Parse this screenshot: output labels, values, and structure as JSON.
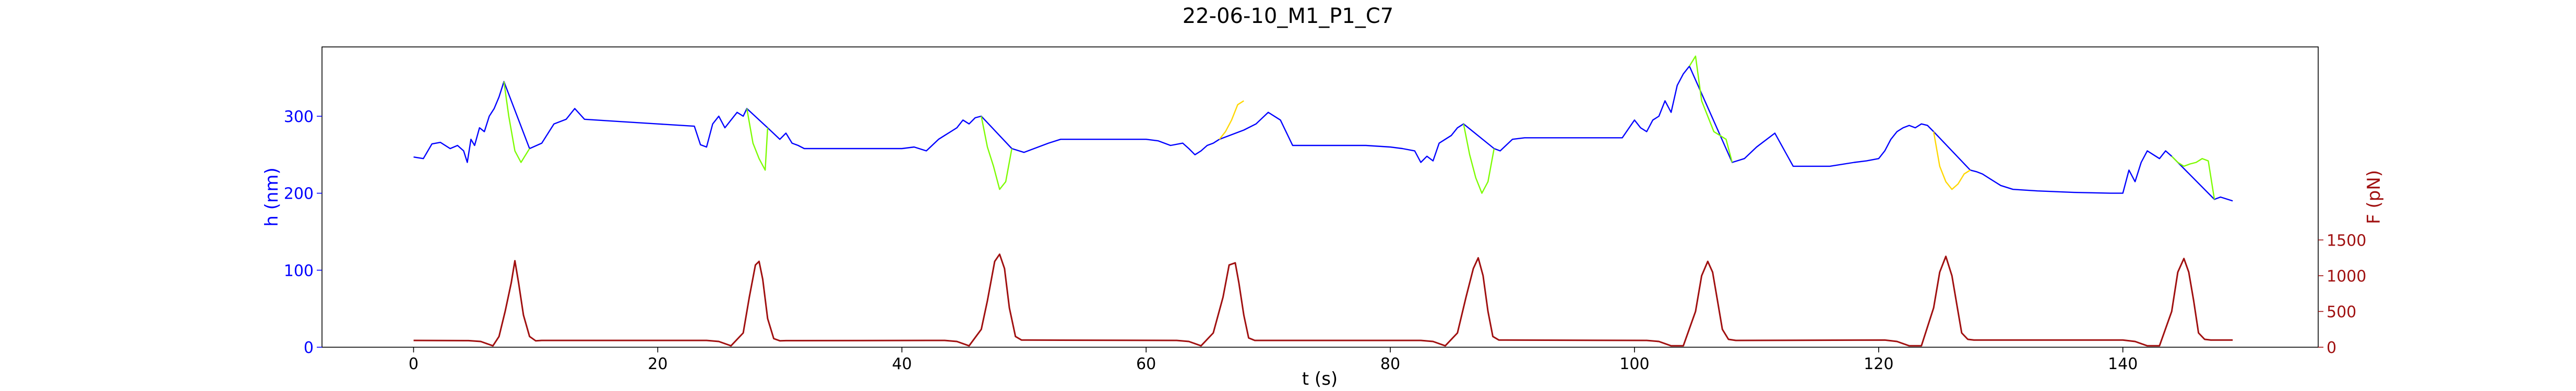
{
  "chart_data": {
    "type": "line",
    "title": "22-06-10_M1_P1_C7",
    "xlabel": "t (s)",
    "ylabel_left": "h (nm)",
    "ylabel_right": "F (pN)",
    "xlim": [
      -7.5,
      156
    ],
    "ylim_left": [
      0,
      390
    ],
    "ylim_right": [
      0,
      4200
    ],
    "xticks": [
      0,
      20,
      40,
      60,
      80,
      100,
      120,
      140
    ],
    "yticks_left": [
      0,
      100,
      200,
      300
    ],
    "yticks_right": [
      0,
      500,
      1000,
      1500
    ],
    "grid": false,
    "legend": "none",
    "colors": {
      "height": "#0000ff",
      "force": "#a01010",
      "lime": "#7cfc00",
      "gold": "#ffd700",
      "left_axis": "#0000ff",
      "right_axis": "#a01010"
    },
    "series": [
      {
        "axis": "left",
        "color": "#0000ff",
        "x": [
          0,
          0.8,
          1.5,
          2.2,
          3.0,
          3.6,
          4.1,
          4.4,
          4.7,
          5.0,
          5.4,
          5.8,
          6.2,
          6.6,
          7.0,
          7.4,
          9.5,
          10.5,
          11.5,
          12.5,
          13.2,
          14.0,
          15.0,
          17.0,
          20.0,
          23.0,
          23.5,
          24.0,
          24.5,
          25.0,
          25.5,
          26.0,
          26.5,
          27.0,
          27.3,
          29.0,
          30.0,
          30.5,
          31.0,
          31.5,
          32.0,
          32.5,
          33.0,
          34.0,
          35.0,
          37.0,
          40.0,
          41.0,
          42.0,
          43.0,
          43.5,
          44.0,
          44.5,
          45.0,
          45.5,
          46.0,
          46.5,
          49.0,
          50.0,
          52.0,
          53.0,
          57.0,
          60.0,
          61.0,
          62.0,
          63.0,
          63.5,
          64.0,
          64.5,
          65.0,
          65.5,
          66.0,
          68.0,
          69.0,
          70.0,
          71.0,
          72.0,
          74.0,
          78.0,
          80.0,
          81.0,
          82.0,
          82.5,
          83.0,
          83.5,
          84.0,
          84.5,
          85.0,
          85.5,
          86.0,
          88.5,
          89.0,
          90.0,
          91.0,
          93.0,
          95.0,
          97.0,
          99.0,
          100.0,
          100.5,
          101.0,
          101.5,
          102.0,
          102.5,
          103.0,
          103.5,
          104.0,
          104.5,
          108.0,
          109.0,
          110.0,
          111.5,
          113.0,
          116.0,
          118.0,
          119.0,
          120.0,
          120.5,
          121.0,
          121.5,
          122.0,
          122.5,
          123.0,
          123.5,
          124.0,
          124.5,
          127.5,
          128.0,
          128.5,
          129.0,
          129.5,
          130.0,
          131.0,
          133.0,
          136.0,
          139.0,
          140.0,
          140.5,
          141.0,
          141.5,
          142.0,
          142.5,
          143.0,
          143.5,
          144.0,
          147.5,
          148.0,
          149.0
        ],
        "y": [
          247,
          245,
          264,
          266,
          258,
          262,
          255,
          240,
          270,
          262,
          285,
          280,
          300,
          310,
          325,
          345,
          258,
          265,
          290,
          296,
          310,
          296,
          295,
          293,
          290,
          287,
          263,
          260,
          290,
          300,
          285,
          295,
          305,
          300,
          310,
          285,
          270,
          278,
          265,
          262,
          258,
          258,
          258,
          258,
          258,
          258,
          258,
          260,
          255,
          270,
          275,
          280,
          285,
          295,
          290,
          298,
          300,
          258,
          253,
          265,
          270,
          270,
          270,
          268,
          262,
          265,
          258,
          250,
          255,
          262,
          265,
          270,
          282,
          290,
          305,
          295,
          262,
          262,
          262,
          260,
          258,
          255,
          240,
          248,
          242,
          265,
          270,
          275,
          285,
          290,
          258,
          255,
          270,
          272,
          272,
          272,
          272,
          272,
          295,
          285,
          280,
          295,
          300,
          320,
          305,
          340,
          355,
          365,
          240,
          245,
          260,
          278,
          235,
          235,
          240,
          242,
          245,
          255,
          270,
          280,
          285,
          288,
          285,
          290,
          288,
          280,
          230,
          228,
          225,
          220,
          215,
          210,
          205,
          203,
          201,
          200,
          200,
          230,
          215,
          240,
          255,
          250,
          245,
          255,
          248,
          192,
          195,
          190
        ]
      },
      {
        "axis": "left",
        "color": "#7cfc00",
        "x": [
          7.4,
          7.8,
          8.3,
          8.8,
          9.5
        ],
        "y": [
          345,
          300,
          255,
          240,
          258
        ]
      },
      {
        "axis": "left",
        "color": "#7cfc00",
        "x": [
          27.3,
          27.8,
          28.3,
          28.8,
          29.0
        ],
        "y": [
          310,
          265,
          245,
          230,
          285
        ]
      },
      {
        "axis": "left",
        "color": "#7cfc00",
        "x": [
          46.5,
          47.0,
          47.5,
          48.0,
          48.5,
          49.0
        ],
        "y": [
          300,
          260,
          235,
          205,
          215,
          258
        ]
      },
      {
        "axis": "left",
        "color": "#ffd700",
        "x": [
          66.0,
          66.5,
          67.0,
          67.5,
          68.0
        ],
        "y": [
          270,
          280,
          295,
          315,
          320
        ]
      },
      {
        "axis": "left",
        "color": "#7cfc00",
        "x": [
          86.0,
          86.5,
          87.0,
          87.5,
          88.0,
          88.5
        ],
        "y": [
          290,
          250,
          220,
          200,
          215,
          258
        ]
      },
      {
        "axis": "left",
        "color": "#7cfc00",
        "x": [
          104.5,
          105.0,
          105.5,
          106.0,
          106.5,
          107.0,
          107.5,
          108.0
        ],
        "y": [
          365,
          378,
          320,
          300,
          280,
          275,
          270,
          240
        ]
      },
      {
        "axis": "left",
        "color": "#ffd700",
        "x": [
          124.5,
          125.0,
          125.5,
          126.0,
          126.5,
          127.0,
          127.5
        ],
        "y": [
          280,
          235,
          215,
          205,
          212,
          225,
          230
        ]
      },
      {
        "axis": "left",
        "color": "#7cfc00",
        "x": [
          144.0,
          144.5,
          145.0,
          145.5,
          146.0,
          146.5,
          147.0,
          147.5
        ],
        "y": [
          248,
          240,
          235,
          238,
          240,
          245,
          242,
          192
        ]
      },
      {
        "axis": "right",
        "color": "#a01010",
        "x": [
          0,
          4.5,
          5.5,
          6.5,
          7.0,
          7.5,
          8.0,
          8.3,
          8.6,
          9.0,
          9.5,
          10.0,
          10.5,
          11.0,
          24.0,
          25.0,
          26.0,
          27.0,
          27.5,
          28.0,
          28.3,
          28.6,
          29.0,
          29.5,
          30.0,
          30.5,
          43.5,
          44.5,
          45.5,
          46.5,
          47.0,
          47.6,
          48.0,
          48.4,
          48.8,
          49.3,
          49.8,
          50.3,
          62.5,
          63.5,
          64.5,
          65.5,
          66.3,
          66.8,
          67.3,
          67.6,
          68.0,
          68.4,
          68.9,
          69.5,
          82.5,
          83.5,
          84.5,
          85.5,
          86.2,
          86.8,
          87.2,
          87.6,
          88.0,
          88.4,
          88.9,
          89.5,
          101.0,
          102.0,
          103.0,
          104.0,
          105.0,
          105.5,
          106.0,
          106.4,
          106.8,
          107.2,
          107.7,
          108.3,
          120.5,
          121.5,
          122.5,
          123.5,
          124.5,
          125.0,
          125.5,
          126.0,
          126.4,
          126.8,
          127.3,
          127.8,
          140.0,
          141.0,
          142.0,
          143.0,
          144.0,
          144.5,
          145.0,
          145.4,
          145.8,
          146.2,
          146.7,
          147.2,
          149.0
        ],
        "y": [
          95,
          92,
          80,
          20,
          150,
          500,
          900,
          1210,
          900,
          450,
          150,
          90,
          95,
          95,
          95,
          80,
          20,
          200,
          700,
          1150,
          1200,
          950,
          400,
          120,
          90,
          92,
          95,
          80,
          20,
          250,
          650,
          1200,
          1300,
          1100,
          550,
          150,
          100,
          100,
          95,
          80,
          20,
          200,
          700,
          1150,
          1180,
          900,
          450,
          130,
          95,
          95,
          95,
          80,
          20,
          200,
          700,
          1100,
          1250,
          1000,
          500,
          150,
          100,
          100,
          95,
          80,
          20,
          20,
          500,
          1000,
          1200,
          1050,
          650,
          250,
          110,
          95,
          100,
          80,
          20,
          20,
          550,
          1050,
          1270,
          1000,
          600,
          200,
          110,
          100,
          100,
          80,
          20,
          20,
          500,
          1050,
          1240,
          1050,
          650,
          200,
          110,
          100,
          100
        ]
      }
    ]
  }
}
